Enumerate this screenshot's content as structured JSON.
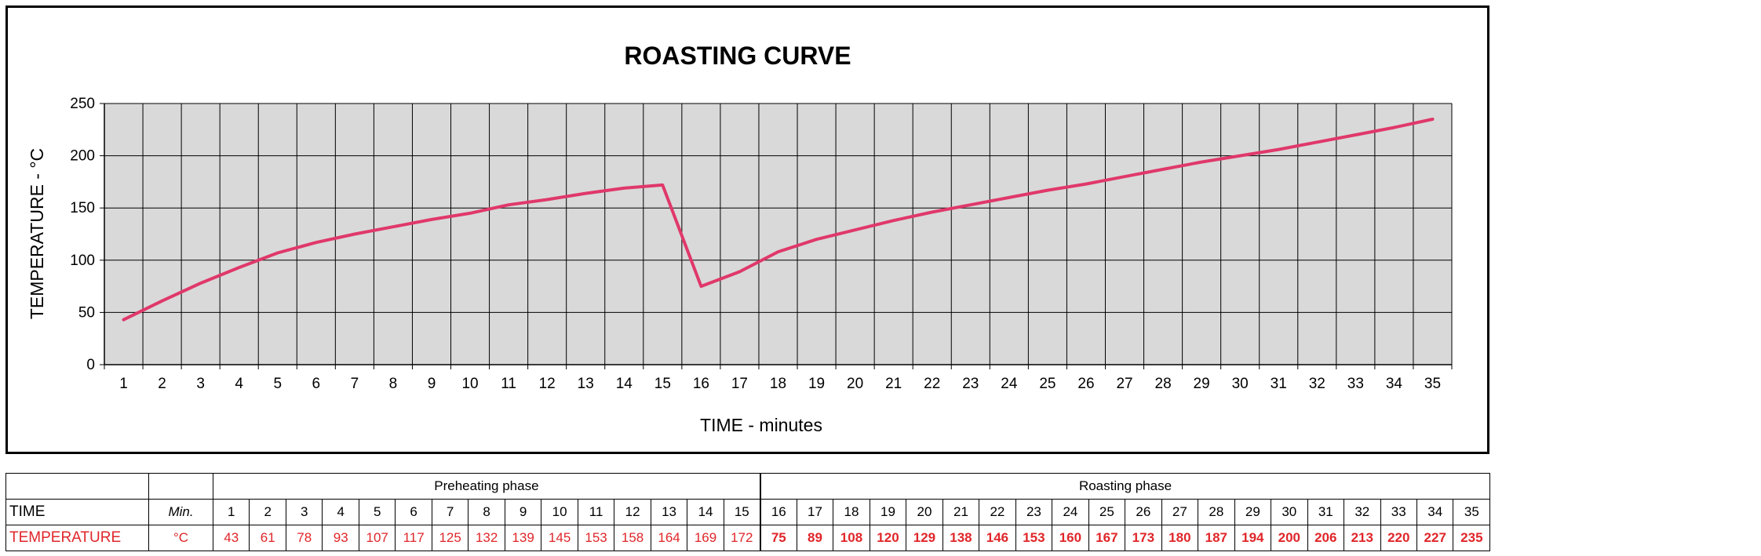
{
  "colors": {
    "line": "#e0386a",
    "plot_bg": "#d9d9d9",
    "temperature_text": "#e0262a"
  },
  "chart_data": {
    "type": "line",
    "title": "ROASTING CURVE",
    "xlabel": "TIME - minutes",
    "ylabel": "TEMPERATURE   - °C",
    "x": [
      1,
      2,
      3,
      4,
      5,
      6,
      7,
      8,
      9,
      10,
      11,
      12,
      13,
      14,
      15,
      16,
      17,
      18,
      19,
      20,
      21,
      22,
      23,
      24,
      25,
      26,
      27,
      28,
      29,
      30,
      31,
      32,
      33,
      34,
      35
    ],
    "series": [
      {
        "values": [
          43,
          61,
          78,
          93,
          107,
          117,
          125,
          132,
          139,
          145,
          153,
          158,
          164,
          169,
          172,
          75,
          89,
          108,
          120,
          129,
          138,
          146,
          153,
          160,
          167,
          173,
          180,
          187,
          194,
          200,
          206,
          213,
          220,
          227,
          235
        ]
      }
    ],
    "xlim": [
      0.5,
      35.5
    ],
    "ylim": [
      0,
      250
    ],
    "yticks": [
      0,
      50,
      100,
      150,
      200,
      250
    ],
    "grid": true,
    "legend": "none"
  },
  "table": {
    "preheating_label": "Preheating phase",
    "roasting_label": "Roasting phase",
    "time_label": "TIME",
    "time_unit": "Min.",
    "temperature_label": "TEMPERATURE",
    "temperature_unit": "°C",
    "preheat_count": 15
  }
}
